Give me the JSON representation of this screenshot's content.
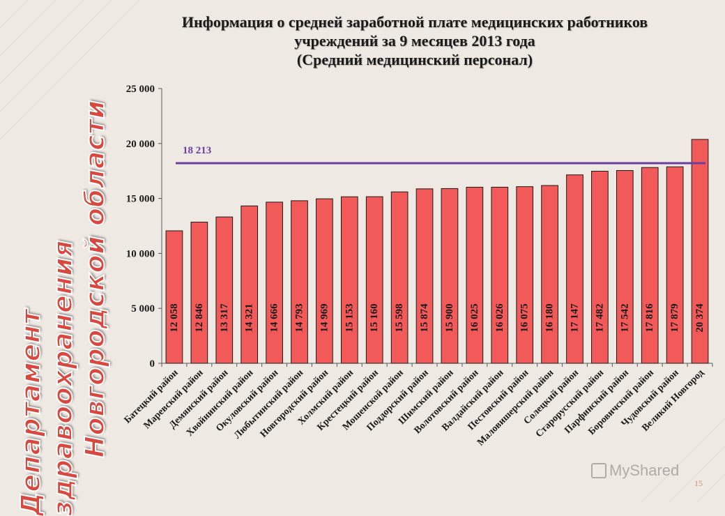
{
  "side_title": {
    "line1": "Департамент здравоохранения",
    "line2": "Новгородской области"
  },
  "title": {
    "line1": "Информация о средней заработной плате медицинских работников",
    "line2": "учреждений за 9 месяцев 2013 года",
    "line3": "(Средний медицинский персонал)"
  },
  "page_number": "15",
  "watermark": "MyShared",
  "colors": {
    "bar": "#f25a5a",
    "bar_stroke": "#1a1a1a",
    "reference_line": "#6b3fa0",
    "background": "#efe9e4",
    "side_title": "#d8483e"
  },
  "chart_data": {
    "type": "bar",
    "categories": [
      "Батецкий район",
      "Маревский район",
      "Демянский район",
      "Хвойнинский район",
      "Окуловский район",
      "Любытинский район",
      "Новгородский район",
      "Холмский район",
      "Крестецкий район",
      "Мошенской район",
      "Поддорский район",
      "Шимский район",
      "Волотовский район",
      "Валдайский район",
      "Пестовский район",
      "Маловишерский район",
      "Солецкий район",
      "Старорусский район",
      "Парфинский район",
      "Боровичский район",
      "Чудовский район",
      "Великий Новгород"
    ],
    "values": [
      12058,
      12846,
      13317,
      14321,
      14666,
      14793,
      14969,
      15153,
      15160,
      15598,
      15874,
      15900,
      16025,
      16026,
      16075,
      16180,
      17147,
      17482,
      17542,
      17816,
      17879,
      20374
    ],
    "value_labels": [
      "12 058",
      "12 846",
      "13 317",
      "14 321",
      "14 666",
      "14 793",
      "14 969",
      "15 153",
      "15 160",
      "15 598",
      "15 874",
      "15 900",
      "16 025",
      "16 026",
      "16 075",
      "16 180",
      "17 147",
      "17 482",
      "17 542",
      "17 816",
      "17 879",
      "20 374"
    ],
    "reference_line": {
      "value": 18213,
      "label": "18 213"
    },
    "ylim": [
      0,
      25000
    ],
    "yticks": [
      0,
      5000,
      10000,
      15000,
      20000,
      25000
    ],
    "ytick_labels": [
      "0",
      "5 000",
      "10 000",
      "15 000",
      "20 000",
      "25 000"
    ],
    "grid": false,
    "legend": "none"
  }
}
